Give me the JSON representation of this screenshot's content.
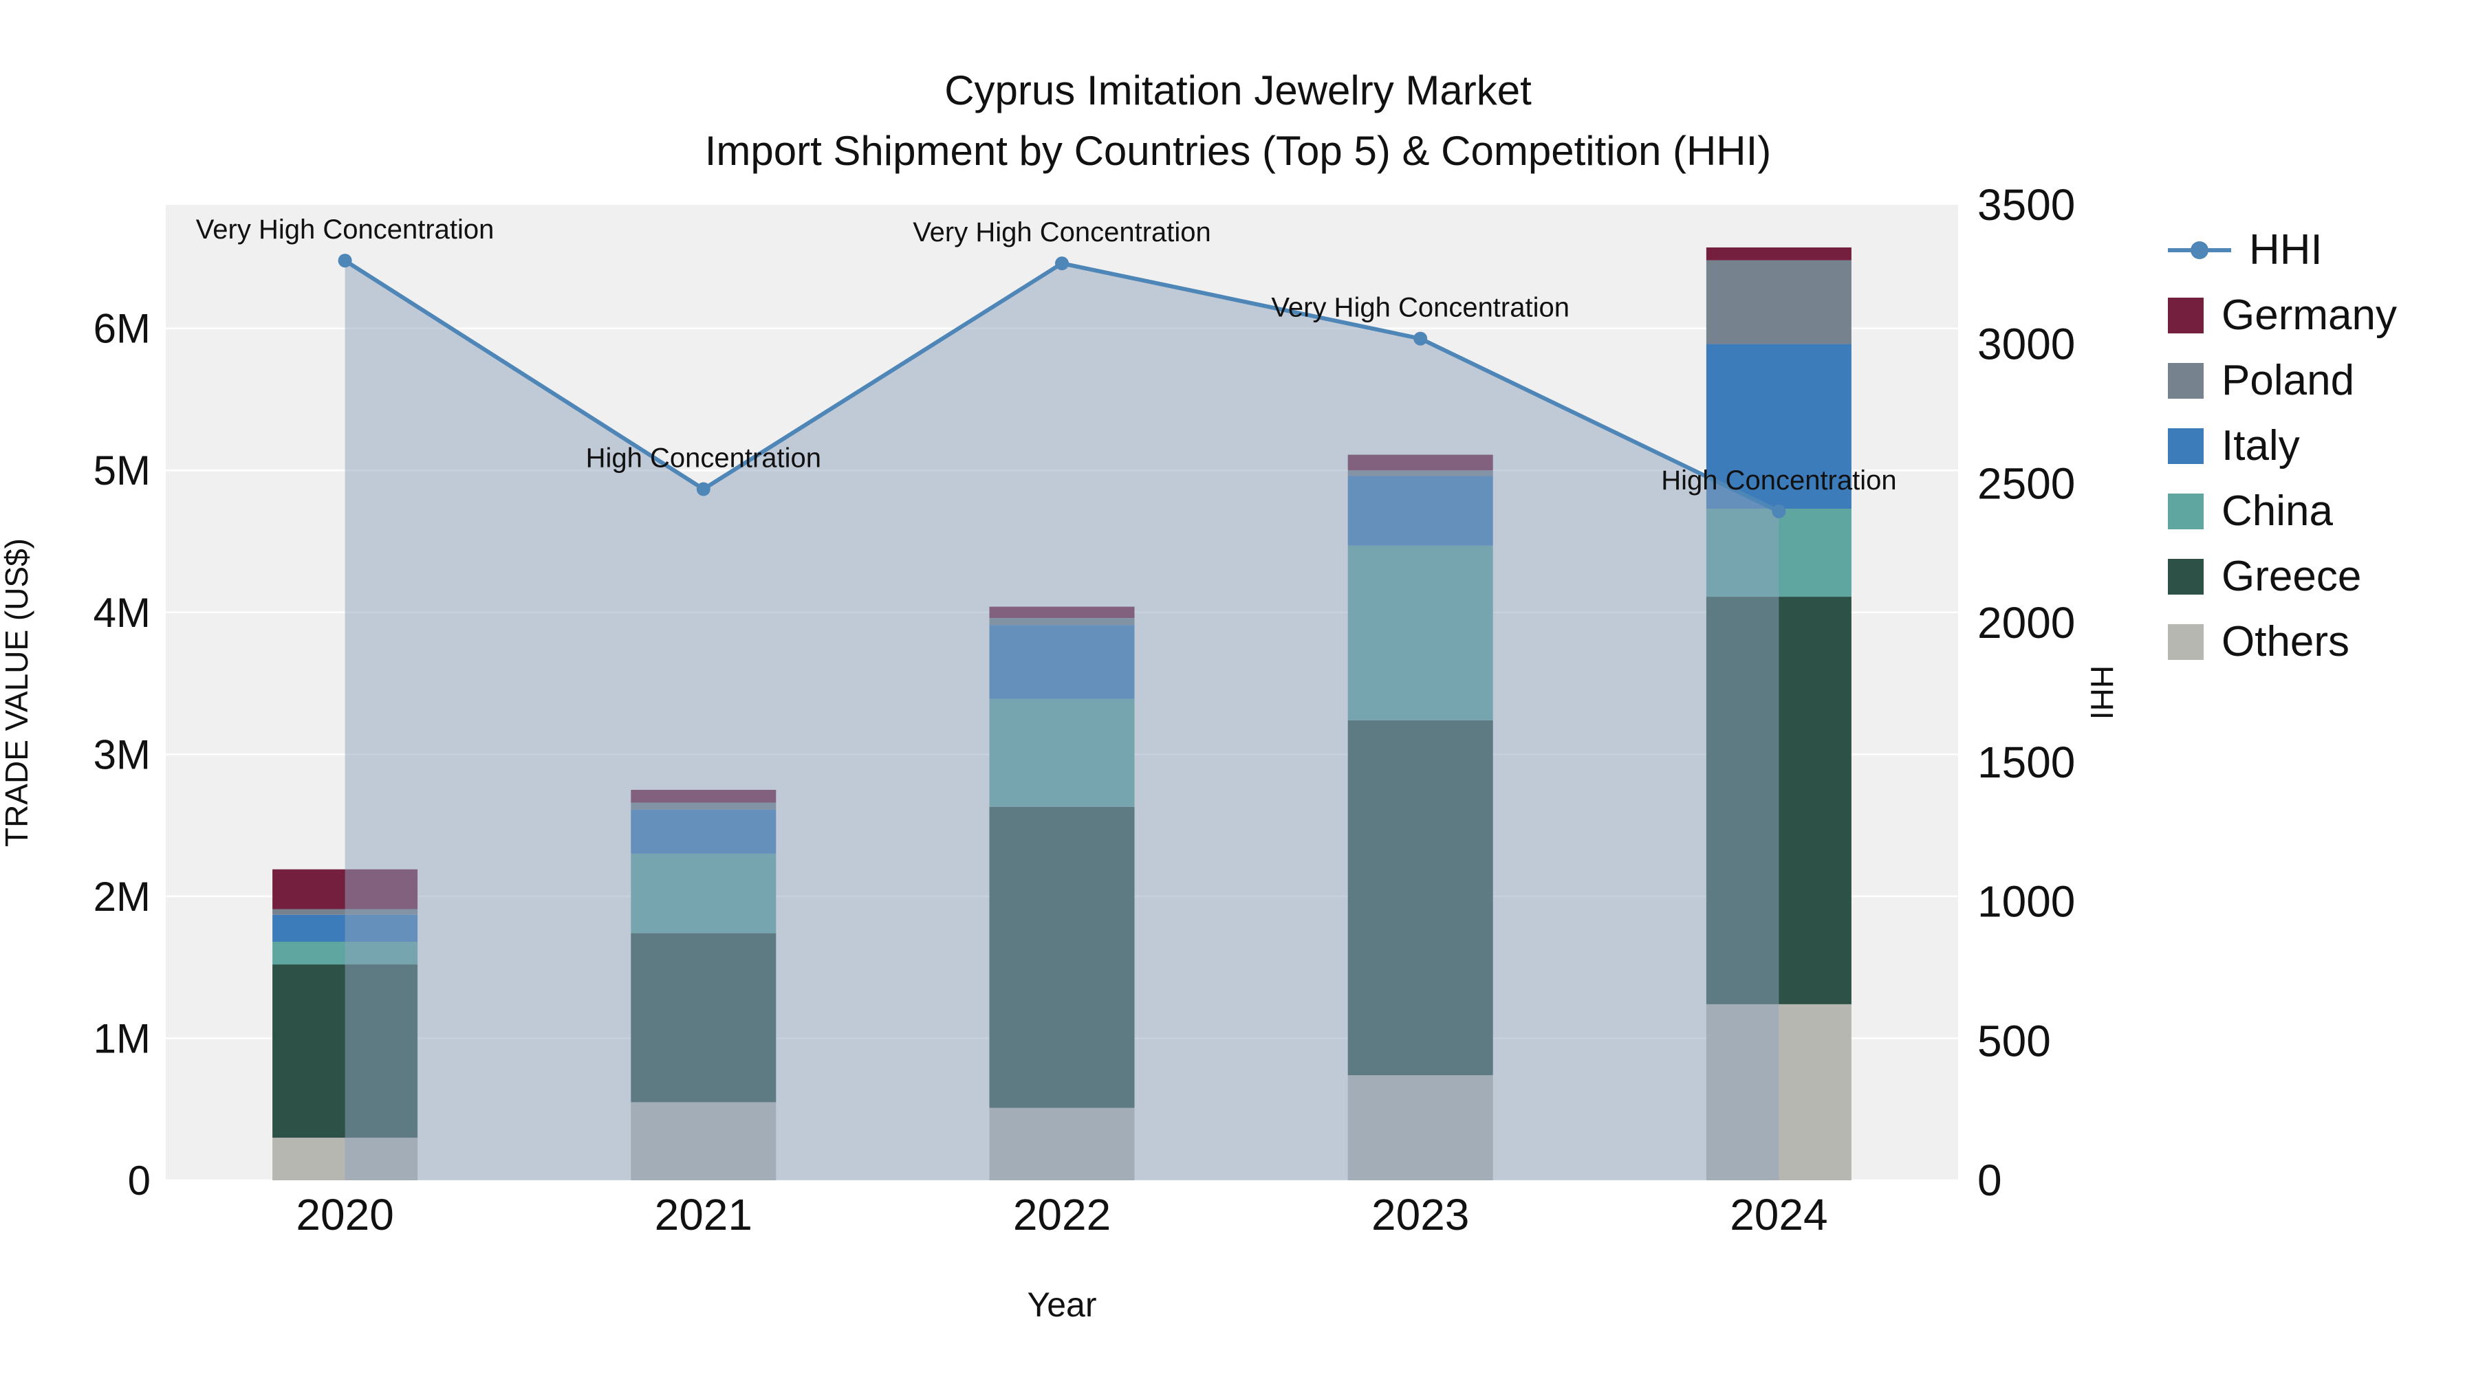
{
  "title": {
    "line1": "Cyprus Imitation Jewelry Market",
    "line2": "Import Shipment by Countries (Top 5) & Competition (HHI)"
  },
  "chart_data": {
    "type": "combo",
    "bar_type": "stacked-bar",
    "line_type": "line-with-area",
    "x": [
      "2020",
      "2021",
      "2022",
      "2023",
      "2024"
    ],
    "xlabel": "Year",
    "ylabel_left": "TRADE VALUE (US$)",
    "ylabel_right": "HHI",
    "y_left_ticks": [
      "0",
      "1M",
      "2M",
      "3M",
      "4M",
      "5M",
      "6M"
    ],
    "y_left_tick_values_musd": [
      0,
      1,
      2,
      3,
      4,
      5,
      6
    ],
    "y_left_axis_max_musd": 6.87,
    "y_right_ticks": [
      "0",
      "500",
      "1000",
      "1500",
      "2000",
      "2500",
      "3000",
      "3500"
    ],
    "y_right_tick_values": [
      0,
      500,
      1000,
      1500,
      2000,
      2500,
      3000,
      3500
    ],
    "y_right_axis_max": 3500,
    "grid": "horizontal-white-on-gray",
    "plot_background": "#f0f0f0",
    "series": [
      {
        "name": "Others",
        "color": "#b7b7b1",
        "values_musd": [
          0.3,
          0.55,
          0.51,
          0.74,
          1.24
        ]
      },
      {
        "name": "Greece",
        "color": "#2d5047",
        "values_musd": [
          1.22,
          1.19,
          2.12,
          2.5,
          2.87
        ]
      },
      {
        "name": "China",
        "color": "#5fa6a0",
        "values_musd": [
          0.16,
          0.56,
          0.76,
          1.23,
          0.62
        ]
      },
      {
        "name": "Italy",
        "color": "#3d7cba",
        "values_musd": [
          0.19,
          0.31,
          0.52,
          0.49,
          1.16
        ]
      },
      {
        "name": "Poland",
        "color": "#77828f",
        "values_musd": [
          0.04,
          0.05,
          0.05,
          0.04,
          0.59
        ]
      },
      {
        "name": "Germany",
        "color": "#731f3d",
        "values_musd": [
          0.28,
          0.09,
          0.08,
          0.11,
          0.09
        ]
      }
    ],
    "hhi": {
      "name": "HHI",
      "line_color": "#4e86b8",
      "area_fill": "rgba(144, 163, 190, 0.5)",
      "values": [
        3300,
        2480,
        3290,
        3020,
        2400
      ]
    },
    "annotations": [
      {
        "x": "2020",
        "text": "Very High Concentration"
      },
      {
        "x": "2021",
        "text": "High Concentration"
      },
      {
        "x": "2022",
        "text": "Very High Concentration"
      },
      {
        "x": "2023",
        "text": "Very High Concentration"
      },
      {
        "x": "2024",
        "text": "High Concentration"
      }
    ],
    "legend": {
      "position": "right",
      "items": [
        "HHI",
        "Germany",
        "Poland",
        "Italy",
        "China",
        "Greece",
        "Others"
      ]
    }
  }
}
